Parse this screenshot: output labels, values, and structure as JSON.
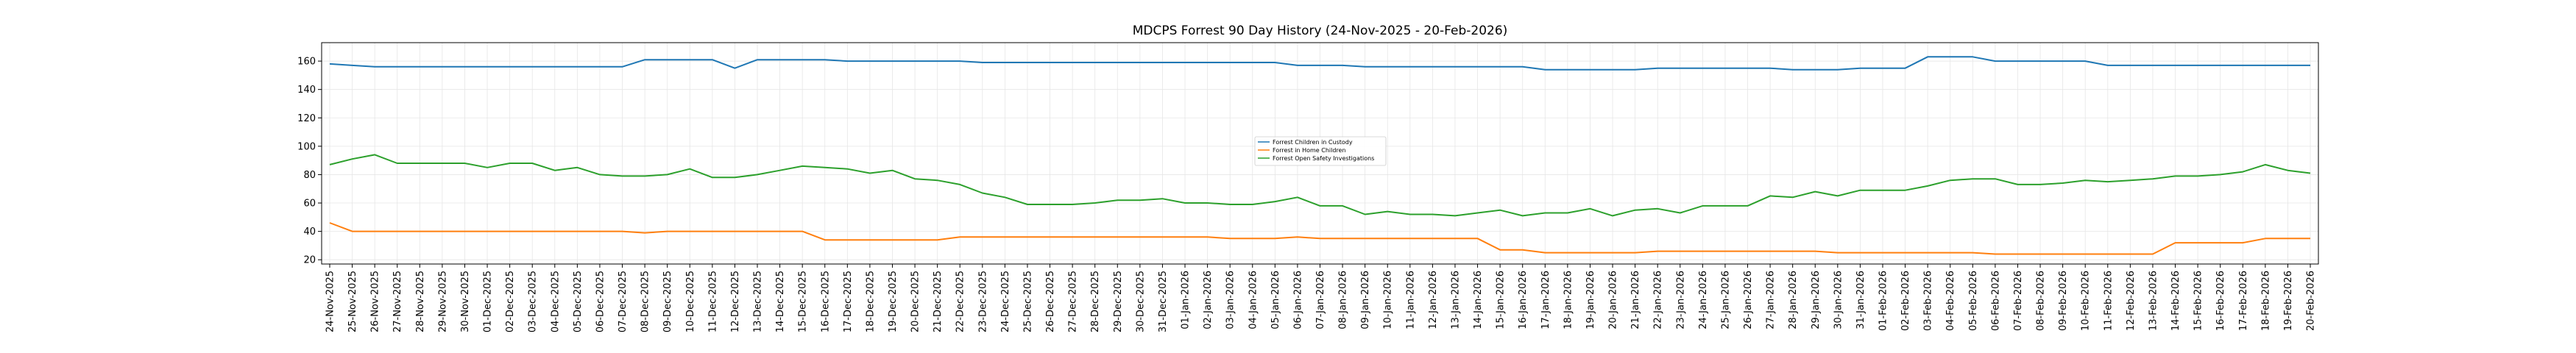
{
  "chart_data": {
    "type": "line",
    "title": "MDCPS Forrest 90 Day History (24-Nov-2025 - 20-Feb-2026)",
    "xlabel": "",
    "ylabel": "",
    "ylim": [
      17,
      173
    ],
    "yticks": [
      20,
      40,
      60,
      80,
      100,
      120,
      140,
      160
    ],
    "grid": true,
    "legend_position": "center",
    "categories": [
      "24-Nov-2025",
      "25-Nov-2025",
      "26-Nov-2025",
      "27-Nov-2025",
      "28-Nov-2025",
      "29-Nov-2025",
      "30-Nov-2025",
      "01-Dec-2025",
      "02-Dec-2025",
      "03-Dec-2025",
      "04-Dec-2025",
      "05-Dec-2025",
      "06-Dec-2025",
      "07-Dec-2025",
      "08-Dec-2025",
      "09-Dec-2025",
      "10-Dec-2025",
      "11-Dec-2025",
      "12-Dec-2025",
      "13-Dec-2025",
      "14-Dec-2025",
      "15-Dec-2025",
      "16-Dec-2025",
      "17-Dec-2025",
      "18-Dec-2025",
      "19-Dec-2025",
      "20-Dec-2025",
      "21-Dec-2025",
      "22-Dec-2025",
      "23-Dec-2025",
      "24-Dec-2025",
      "25-Dec-2025",
      "26-Dec-2025",
      "27-Dec-2025",
      "28-Dec-2025",
      "29-Dec-2025",
      "30-Dec-2025",
      "31-Dec-2025",
      "01-Jan-2026",
      "02-Jan-2026",
      "03-Jan-2026",
      "04-Jan-2026",
      "05-Jan-2026",
      "06-Jan-2026",
      "07-Jan-2026",
      "08-Jan-2026",
      "09-Jan-2026",
      "10-Jan-2026",
      "11-Jan-2026",
      "12-Jan-2026",
      "13-Jan-2026",
      "14-Jan-2026",
      "15-Jan-2026",
      "16-Jan-2026",
      "17-Jan-2026",
      "18-Jan-2026",
      "19-Jan-2026",
      "20-Jan-2026",
      "21-Jan-2026",
      "22-Jan-2026",
      "23-Jan-2026",
      "24-Jan-2026",
      "25-Jan-2026",
      "26-Jan-2026",
      "27-Jan-2026",
      "28-Jan-2026",
      "29-Jan-2026",
      "30-Jan-2026",
      "31-Jan-2026",
      "01-Feb-2026",
      "02-Feb-2026",
      "03-Feb-2026",
      "04-Feb-2026",
      "05-Feb-2026",
      "06-Feb-2026",
      "07-Feb-2026",
      "08-Feb-2026",
      "09-Feb-2026",
      "10-Feb-2026",
      "11-Feb-2026",
      "12-Feb-2026",
      "13-Feb-2026",
      "14-Feb-2026",
      "15-Feb-2026",
      "16-Feb-2026",
      "17-Feb-2026",
      "18-Feb-2026",
      "19-Feb-2026",
      "20-Feb-2026"
    ],
    "series": [
      {
        "name": "Forrest Children in Custody",
        "color": "#1f77b4",
        "values": [
          158,
          157,
          156,
          156,
          156,
          156,
          156,
          156,
          156,
          156,
          156,
          156,
          156,
          156,
          161,
          161,
          161,
          161,
          155,
          161,
          161,
          161,
          161,
          160,
          160,
          160,
          160,
          160,
          160,
          159,
          159,
          159,
          159,
          159,
          159,
          159,
          159,
          159,
          159,
          159,
          159,
          159,
          159,
          157,
          157,
          157,
          156,
          156,
          156,
          156,
          156,
          156,
          156,
          156,
          154,
          154,
          154,
          154,
          154,
          155,
          155,
          155,
          155,
          155,
          155,
          154,
          154,
          154,
          155,
          155,
          155,
          163,
          163,
          163,
          160,
          160,
          160,
          160,
          160,
          157,
          157,
          157,
          157,
          157,
          157,
          157,
          157,
          157,
          157
        ]
      },
      {
        "name": "Forrest in Home Children",
        "color": "#ff7f0e",
        "values": [
          46,
          40,
          40,
          40,
          40,
          40,
          40,
          40,
          40,
          40,
          40,
          40,
          40,
          40,
          39,
          40,
          40,
          40,
          40,
          40,
          40,
          40,
          34,
          34,
          34,
          34,
          34,
          34,
          36,
          36,
          36,
          36,
          36,
          36,
          36,
          36,
          36,
          36,
          36,
          36,
          35,
          35,
          35,
          36,
          35,
          35,
          35,
          35,
          35,
          35,
          35,
          35,
          27,
          27,
          25,
          25,
          25,
          25,
          25,
          26,
          26,
          26,
          26,
          26,
          26,
          26,
          26,
          25,
          25,
          25,
          25,
          25,
          25,
          25,
          24,
          24,
          24,
          24,
          24,
          24,
          24,
          24,
          32,
          32,
          32,
          32,
          35,
          35,
          35
        ]
      },
      {
        "name": "Forrest Open Safety Investigations",
        "color": "#2ca02c",
        "values": [
          87,
          91,
          94,
          88,
          88,
          88,
          88,
          85,
          88,
          88,
          83,
          85,
          80,
          79,
          79,
          80,
          84,
          78,
          78,
          80,
          83,
          86,
          85,
          84,
          81,
          83,
          77,
          76,
          73,
          67,
          64,
          59,
          59,
          59,
          60,
          62,
          62,
          63,
          60,
          60,
          59,
          59,
          61,
          64,
          58,
          58,
          52,
          54,
          52,
          52,
          51,
          53,
          55,
          51,
          53,
          53,
          56,
          51,
          55,
          56,
          53,
          58,
          58,
          58,
          65,
          64,
          68,
          65,
          69,
          69,
          69,
          72,
          76,
          77,
          77,
          73,
          73,
          74,
          76,
          75,
          76,
          77,
          79,
          79,
          80,
          82,
          87,
          83,
          81
        ]
      }
    ]
  }
}
